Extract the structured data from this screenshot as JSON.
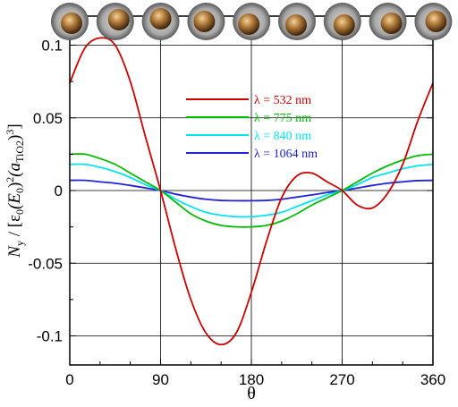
{
  "chart_data": {
    "type": "line",
    "xlabel": "θ",
    "ylabel": {
      "parts": [
        "N",
        "y",
        " / [ε",
        "0",
        "(E",
        "0",
        ")",
        "2",
        "(a",
        "TiO2",
        ")",
        "3",
        "]"
      ]
    },
    "xlim": [
      0,
      360
    ],
    "ylim": [
      -0.12,
      0.12
    ],
    "xticks": [
      0,
      90,
      180,
      270,
      360
    ],
    "xtick_labels": [
      "0",
      "90",
      "180",
      "270",
      "360"
    ],
    "yticks": [
      -0.1,
      -0.05,
      0,
      0.05,
      0.1
    ],
    "ytick_labels": [
      "-0.1",
      "-0.05",
      "0",
      "0.05",
      "0.1"
    ],
    "grid": true,
    "legend_position": "upper-center",
    "top_markers": {
      "description": "sphere inset icons along top axis",
      "count": 9
    },
    "x": [
      0,
      15,
      30,
      45,
      60,
      75,
      90,
      105,
      120,
      135,
      150,
      165,
      180,
      195,
      210,
      225,
      240,
      255,
      270,
      285,
      300,
      315,
      330,
      345,
      360
    ],
    "series": [
      {
        "name": "λ =  532 nm",
        "color": "#cc0000",
        "values": [
          0.074,
          0.098,
          0.105,
          0.1,
          0.075,
          0.037,
          0.0,
          -0.04,
          -0.075,
          -0.098,
          -0.106,
          -0.098,
          -0.07,
          -0.035,
          -0.005,
          0.01,
          0.012,
          0.006,
          0.0,
          -0.01,
          -0.012,
          -0.002,
          0.018,
          0.048,
          0.074
        ]
      },
      {
        "name": "λ = 775 nm",
        "color": "#00bb00",
        "values": [
          0.025,
          0.025,
          0.022,
          0.018,
          0.012,
          0.006,
          0.0,
          -0.008,
          -0.016,
          -0.021,
          -0.024,
          -0.025,
          -0.025,
          -0.024,
          -0.021,
          -0.016,
          -0.01,
          -0.005,
          0.0,
          0.006,
          0.012,
          0.017,
          0.021,
          0.024,
          0.025
        ]
      },
      {
        "name": "λ = 840 nm",
        "color": "#00e5ee",
        "values": [
          0.018,
          0.018,
          0.016,
          0.013,
          0.009,
          0.004,
          0.0,
          -0.006,
          -0.011,
          -0.015,
          -0.017,
          -0.018,
          -0.018,
          -0.017,
          -0.015,
          -0.011,
          -0.007,
          -0.003,
          0.0,
          0.004,
          0.009,
          0.012,
          0.015,
          0.017,
          0.018
        ]
      },
      {
        "name": "λ = 1064 nm",
        "color": "#2222dd",
        "values": [
          0.007,
          0.007,
          0.006,
          0.005,
          0.0035,
          0.0018,
          0.0,
          -0.0025,
          -0.0045,
          -0.006,
          -0.0068,
          -0.007,
          -0.007,
          -0.0068,
          -0.006,
          -0.0045,
          -0.003,
          -0.0014,
          0.0,
          0.0017,
          0.0035,
          0.005,
          0.006,
          0.0068,
          0.007
        ]
      }
    ]
  }
}
